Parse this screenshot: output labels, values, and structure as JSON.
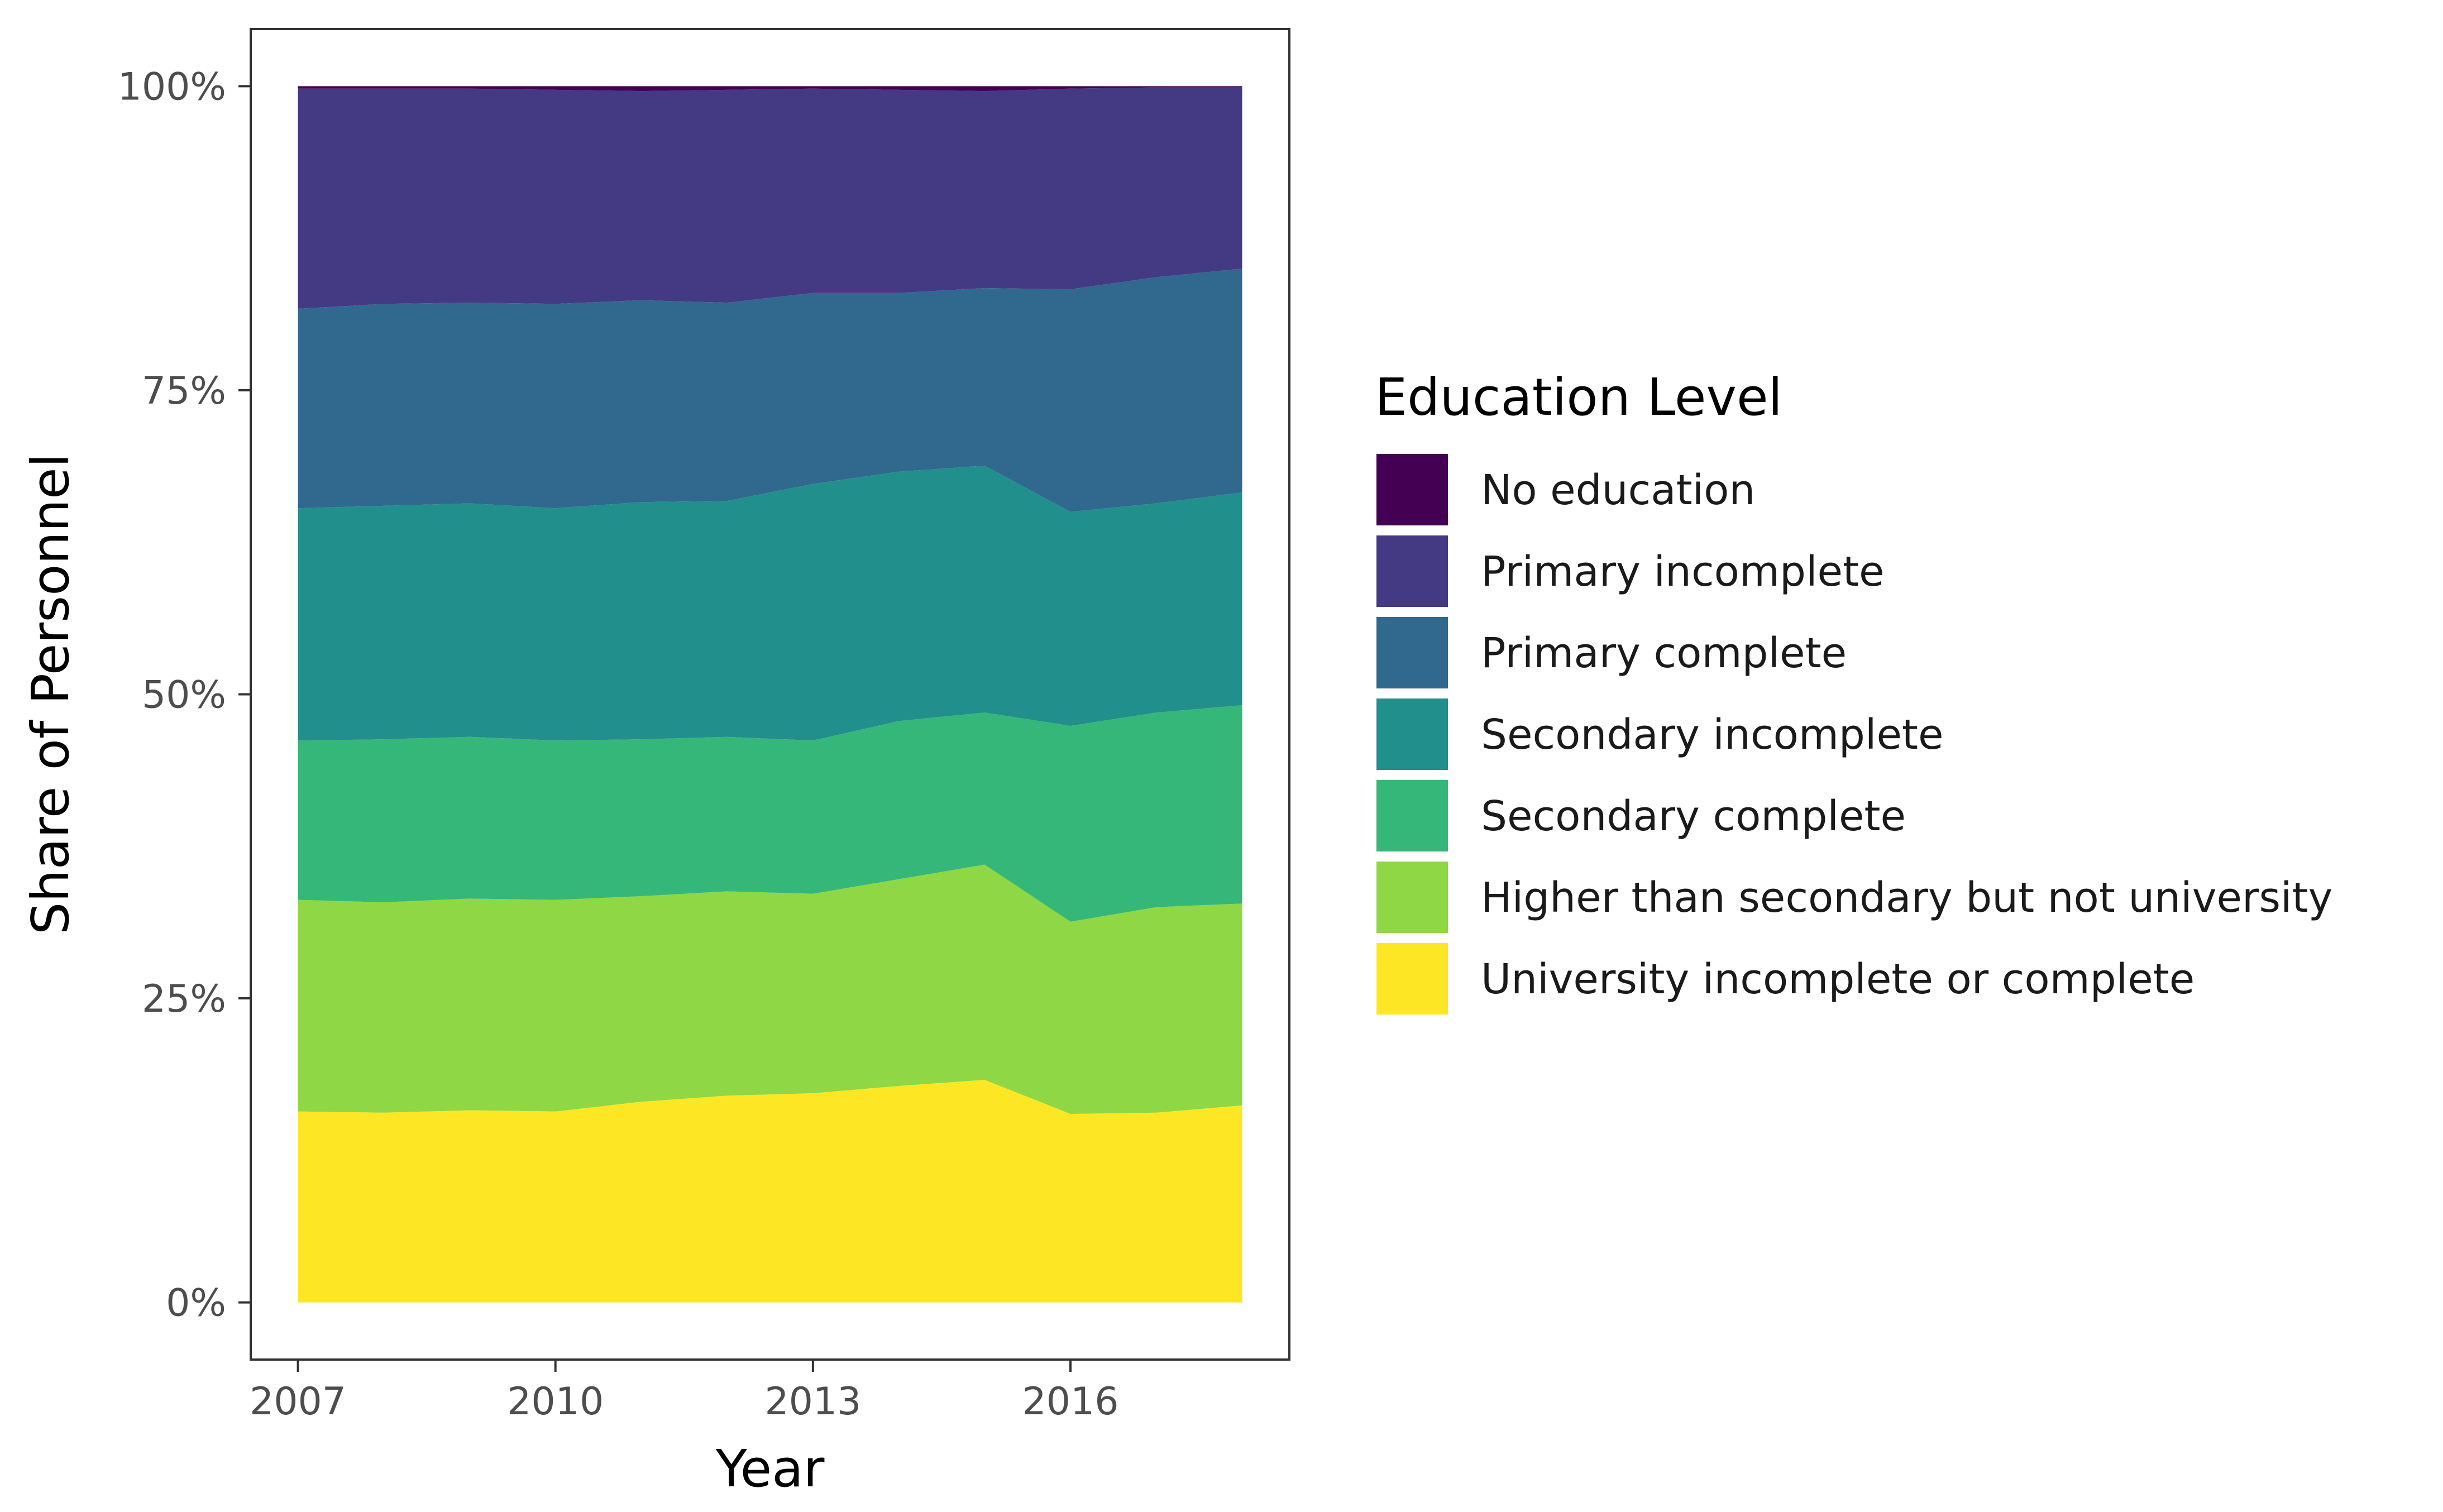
{
  "chart_data": {
    "type": "area",
    "stacked": true,
    "xlabel": "Year",
    "ylabel": "Share of Personnel",
    "x": [
      2007,
      2008,
      2009,
      2010,
      2011,
      2012,
      2013,
      2014,
      2015,
      2016,
      2017,
      2018
    ],
    "xlim": [
      2006.45,
      2018.55
    ],
    "ylim": [
      -0.047,
      1.047
    ],
    "x_ticks": [
      "2007",
      "2010",
      "2013",
      "2016"
    ],
    "y_ticks": [
      "0%",
      "25%",
      "50%",
      "75%",
      "100%"
    ],
    "grid": false,
    "legend": {
      "title": "Education Level",
      "position": "right"
    },
    "series": [
      {
        "name": "University incomplete or complete",
        "color": "#FDE725",
        "values": [
          0.157,
          0.156,
          0.158,
          0.157,
          0.165,
          0.17,
          0.172,
          0.178,
          0.183,
          0.155,
          0.156,
          0.162
        ]
      },
      {
        "name": "Higher than secondary but not university",
        "color": "#8FD744",
        "values": [
          0.174,
          0.173,
          0.174,
          0.174,
          0.169,
          0.168,
          0.164,
          0.17,
          0.177,
          0.158,
          0.169,
          0.166
        ]
      },
      {
        "name": "Secondary complete",
        "color": "#35B779",
        "values": [
          0.131,
          0.134,
          0.133,
          0.131,
          0.129,
          0.127,
          0.126,
          0.13,
          0.125,
          0.161,
          0.16,
          0.163
        ]
      },
      {
        "name": "Secondary incomplete",
        "color": "#21908C",
        "values": [
          0.191,
          0.192,
          0.192,
          0.191,
          0.195,
          0.194,
          0.211,
          0.205,
          0.203,
          0.176,
          0.172,
          0.175
        ]
      },
      {
        "name": "Primary complete",
        "color": "#31688E",
        "values": [
          0.164,
          0.166,
          0.165,
          0.168,
          0.166,
          0.163,
          0.157,
          0.147,
          0.146,
          0.183,
          0.186,
          0.184
        ]
      },
      {
        "name": "Primary incomplete",
        "color": "#443A83",
        "values": [
          0.181,
          0.177,
          0.176,
          0.176,
          0.172,
          0.175,
          0.168,
          0.167,
          0.162,
          0.165,
          0.156,
          0.149
        ]
      },
      {
        "name": "No education",
        "color": "#440154",
        "values": [
          0.002,
          0.002,
          0.002,
          0.003,
          0.004,
          0.003,
          0.002,
          0.003,
          0.004,
          0.002,
          0.001,
          0.001
        ]
      }
    ]
  },
  "colors": {
    "panel_border": "#333333",
    "axis_tick": "#333333",
    "background": "#ffffff"
  }
}
